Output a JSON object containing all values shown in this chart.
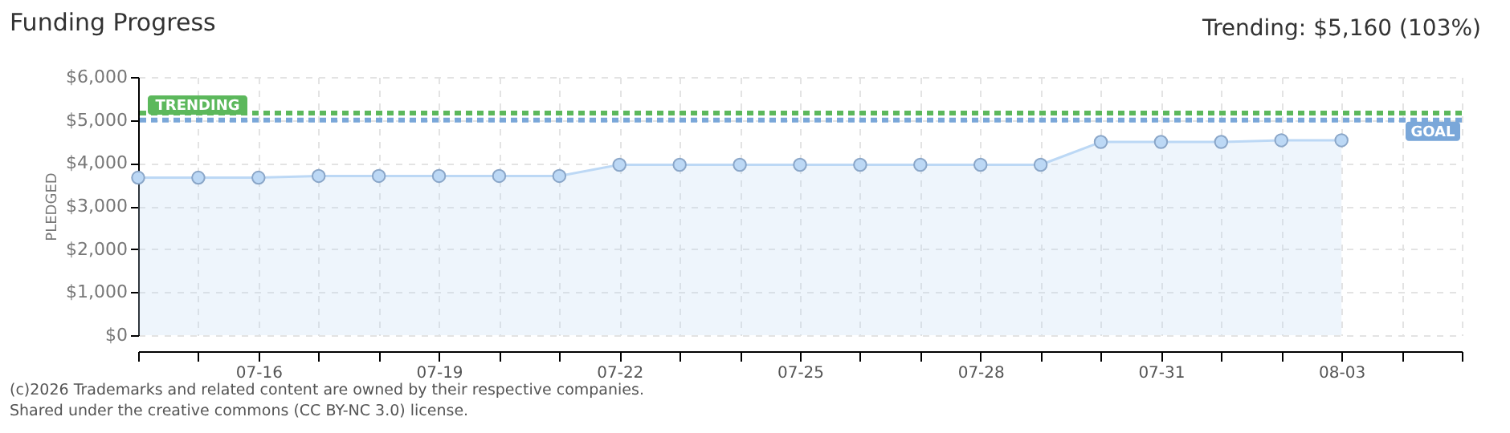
{
  "chart_data": {
    "type": "area",
    "title": "Funding Progress",
    "subtitle": "Trending: $5,160 (103%)",
    "ylabel": "PLEDGED",
    "x": [
      "--07-14",
      "--07-15",
      "--07-16",
      "--07-17",
      "--07-18",
      "--07-19",
      "--07-20",
      "--07-21",
      "--07-22",
      "--07-23",
      "--07-24",
      "--07-25",
      "--07-26",
      "--07-27",
      "--07-28",
      "--07-29",
      "--07-30",
      "--07-31",
      "--08-01",
      "--08-02",
      "--08-03"
    ],
    "series": [
      {
        "color": "#bcd8f5",
        "values": [
          3660,
          3660,
          3660,
          3700,
          3700,
          3700,
          3700,
          3700,
          3960,
          3960,
          3960,
          3960,
          3960,
          3960,
          3960,
          3960,
          4490,
          4490,
          4490,
          4530,
          4530
        ]
      }
    ],
    "marker": "circle",
    "xlim": [
      "--07-14",
      "--08-05"
    ],
    "xticks": [
      {
        "value": "--07-14",
        "label": null
      },
      {
        "value": "--07-15",
        "label": null
      },
      {
        "value": "--07-16",
        "label": "07-16"
      },
      {
        "value": "--07-17",
        "label": null
      },
      {
        "value": "--07-18",
        "label": null
      },
      {
        "value": "--07-19",
        "label": "07-19"
      },
      {
        "value": "--07-20",
        "label": null
      },
      {
        "value": "--07-21",
        "label": null
      },
      {
        "value": "--07-22",
        "label": "07-22"
      },
      {
        "value": "--07-23",
        "label": null
      },
      {
        "value": "--07-24",
        "label": null
      },
      {
        "value": "--07-25",
        "label": "07-25"
      },
      {
        "value": "--07-26",
        "label": null
      },
      {
        "value": "--07-27",
        "label": null
      },
      {
        "value": "--07-28",
        "label": "07-28"
      },
      {
        "value": "--07-29",
        "label": null
      },
      {
        "value": "--07-30",
        "label": null
      },
      {
        "value": "--07-31",
        "label": "07-31"
      },
      {
        "value": "--08-01",
        "label": null
      },
      {
        "value": "--08-02",
        "label": null
      },
      {
        "value": "--08-03",
        "label": "08-03"
      },
      {
        "value": "--08-04",
        "label": null
      },
      {
        "value": "--08-05",
        "label": null
      }
    ],
    "ylim": [
      0,
      6000
    ],
    "yticks": [
      {
        "value": 0,
        "label": "$0"
      },
      {
        "value": 1000,
        "label": "$1,000"
      },
      {
        "value": 2000,
        "label": "$2,000"
      },
      {
        "value": 3000,
        "label": "$3,000"
      },
      {
        "value": 4000,
        "label": "$4,000"
      },
      {
        "value": 5000,
        "label": "$5,000"
      },
      {
        "value": 6000,
        "label": "$6,000"
      }
    ],
    "grid": true,
    "ref_lines": [
      {
        "axis": "y",
        "value": 5160,
        "label": "TRENDING",
        "color": "#5cb85c",
        "line_style": "dashed"
      },
      {
        "axis": "y",
        "value": 5000,
        "label": "GOAL",
        "color": "#7aa7d9",
        "line_style": "dashed"
      }
    ],
    "annotations": [
      "(c)2026 Trademarks and related content are owned by their respective companies.",
      "Shared under the creative commons (CC BY-NC 3.0) license."
    ]
  }
}
